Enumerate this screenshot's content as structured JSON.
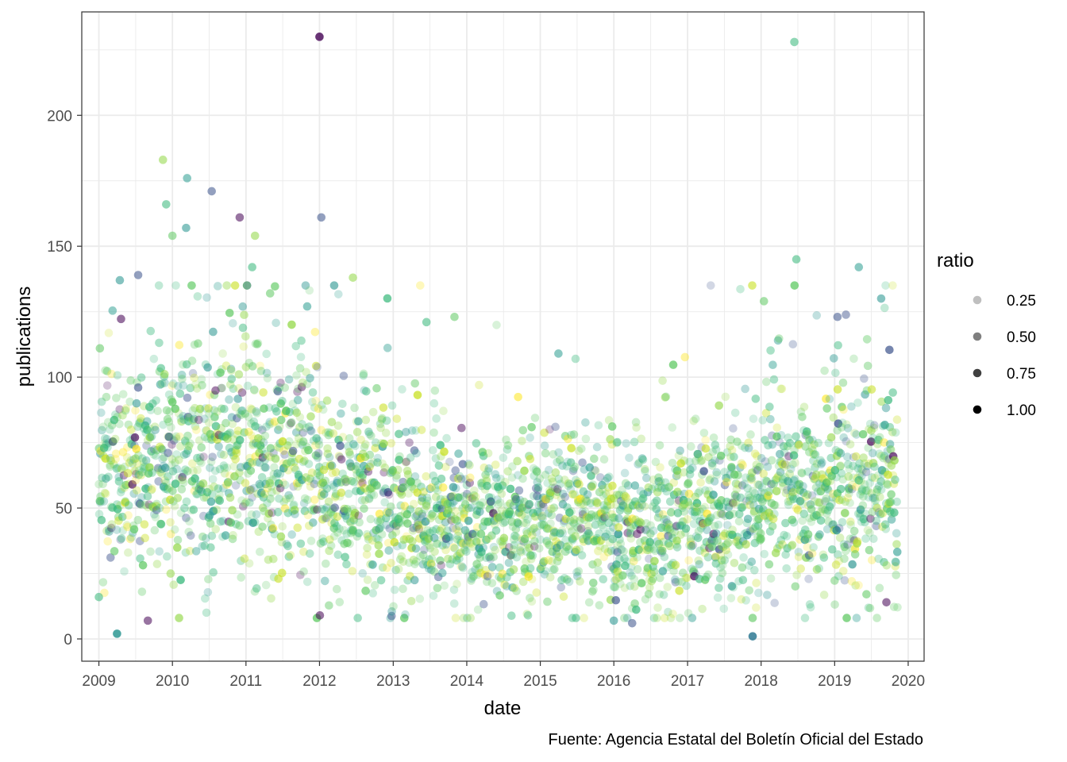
{
  "chart_data": {
    "type": "scatter",
    "title": "",
    "xlabel": "date",
    "ylabel": "publications",
    "caption": "Fuente: Agencia Estatal del Boletín Oficial del Estado",
    "x_ticks": [
      "2009",
      "2010",
      "2011",
      "2012",
      "2013",
      "2014",
      "2015",
      "2016",
      "2017",
      "2018",
      "2019",
      "2020"
    ],
    "y_ticks": [
      0,
      50,
      100,
      150,
      200
    ],
    "xlim": [
      "2008-10-08",
      "2020-03-20"
    ],
    "ylim": [
      -8.5,
      239.5
    ],
    "grid": true,
    "legend": {
      "title": "ratio",
      "position": "right",
      "entries": [
        {
          "label": "0.25",
          "alpha": 0.25
        },
        {
          "label": "0.50",
          "alpha": 0.5
        },
        {
          "label": "0.75",
          "alpha": 0.75
        },
        {
          "label": "1.00",
          "alpha": 1.0
        }
      ]
    },
    "colors": {
      "viridis": [
        "#440154",
        "#3b528b",
        "#21918c",
        "#2a9d8f",
        "#35b779",
        "#5ec962",
        "#90d743",
        "#c8e020",
        "#fde725"
      ],
      "panel_border": "#333333",
      "grid": "#ebebeb"
    },
    "notable_points": [
      {
        "x": "2009-01-01",
        "y": 16
      },
      {
        "x": "2009-01-06",
        "y": 111
      },
      {
        "x": "2009-04-01",
        "y": 2
      },
      {
        "x": "2009-04-15",
        "y": 137
      },
      {
        "x": "2009-07-15",
        "y": 139
      },
      {
        "x": "2009-09-01",
        "y": 7
      },
      {
        "x": "2009-11-15",
        "y": 183
      },
      {
        "x": "2009-12-01",
        "y": 166
      },
      {
        "x": "2010-01-01",
        "y": 154
      },
      {
        "x": "2010-03-15",
        "y": 176
      },
      {
        "x": "2010-03-10",
        "y": 157
      },
      {
        "x": "2010-07-15",
        "y": 171
      },
      {
        "x": "2010-12-01",
        "y": 161
      },
      {
        "x": "2011-02-15",
        "y": 154
      },
      {
        "x": "2011-02-01",
        "y": 142
      },
      {
        "x": "2011-05-01",
        "y": 132
      },
      {
        "x": "2011-11-01",
        "y": 127
      },
      {
        "x": "2012-01-01",
        "y": 230
      },
      {
        "x": "2012-01-10",
        "y": 161
      },
      {
        "x": "2012-01-03",
        "y": 9
      },
      {
        "x": "2012-06-15",
        "y": 138
      },
      {
        "x": "2013-06-15",
        "y": 121
      },
      {
        "x": "2013-11-01",
        "y": 123
      },
      {
        "x": "2015-04-01",
        "y": 109
      },
      {
        "x": "2016-01-01",
        "y": 7
      },
      {
        "x": "2016-04-01",
        "y": 6
      },
      {
        "x": "2017-11-20",
        "y": 1
      },
      {
        "x": "2018-06-15",
        "y": 228
      },
      {
        "x": "2018-06-25",
        "y": 145
      },
      {
        "x": "2018-01-15",
        "y": 129
      },
      {
        "x": "2019-05-01",
        "y": 142
      },
      {
        "x": "2019-08-20",
        "y": 130
      },
      {
        "x": "2019-01-15",
        "y": 123
      },
      {
        "x": "2019-09-15",
        "y": 14
      }
    ],
    "series_profile": [
      {
        "year": 2009,
        "median": 66,
        "spread": 20
      },
      {
        "year": 2010,
        "median": 68,
        "spread": 22
      },
      {
        "year": 2011,
        "median": 66,
        "spread": 21
      },
      {
        "year": 2012,
        "median": 56,
        "spread": 19
      },
      {
        "year": 2013,
        "median": 44,
        "spread": 15
      },
      {
        "year": 2014,
        "median": 44,
        "spread": 15
      },
      {
        "year": 2015,
        "median": 46,
        "spread": 15
      },
      {
        "year": 2016,
        "median": 41,
        "spread": 15
      },
      {
        "year": 2017,
        "median": 47,
        "spread": 17
      },
      {
        "year": 2018,
        "median": 55,
        "spread": 20
      },
      {
        "year": 2019,
        "median": 56,
        "spread": 20
      }
    ]
  }
}
